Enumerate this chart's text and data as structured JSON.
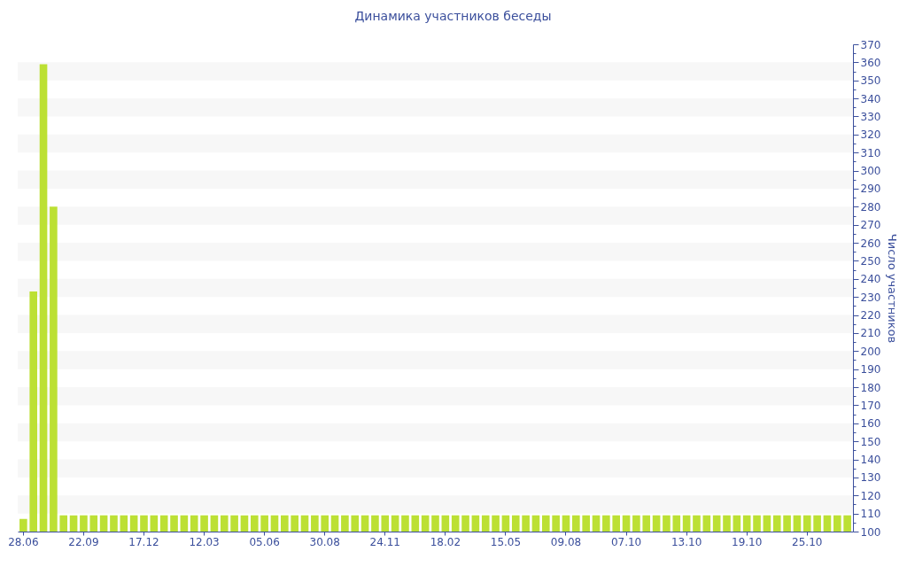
{
  "chart_data": {
    "type": "bar",
    "title": "Динамика участников беседы",
    "ylabel": "Число участников",
    "categories": [
      "28.06",
      null,
      null,
      null,
      null,
      null,
      "22.09",
      null,
      null,
      null,
      null,
      null,
      "17.12",
      null,
      null,
      null,
      null,
      null,
      "12.03",
      null,
      null,
      null,
      null,
      null,
      "05.06",
      null,
      null,
      null,
      null,
      null,
      "30.08",
      null,
      null,
      null,
      null,
      null,
      "24.11",
      null,
      null,
      null,
      null,
      null,
      "18.02",
      null,
      null,
      null,
      null,
      null,
      "15.05",
      null,
      null,
      null,
      null,
      null,
      "09.08",
      null,
      null,
      null,
      null,
      null,
      "07.10",
      null,
      null,
      null,
      null,
      null,
      "13.10",
      null,
      null,
      null,
      null,
      null,
      "19.10",
      null,
      null,
      null,
      null,
      null,
      "25.10",
      null,
      null,
      null,
      null
    ],
    "values": [
      107,
      233,
      359,
      280,
      109,
      109,
      109,
      109,
      109,
      109,
      109,
      109,
      109,
      109,
      109,
      109,
      109,
      109,
      109,
      109,
      109,
      109,
      109,
      109,
      109,
      109,
      109,
      109,
      109,
      109,
      109,
      109,
      109,
      109,
      109,
      109,
      109,
      109,
      109,
      109,
      109,
      109,
      109,
      109,
      109,
      109,
      109,
      109,
      109,
      109,
      109,
      109,
      109,
      109,
      109,
      109,
      109,
      109,
      109,
      109,
      109,
      109,
      109,
      109,
      109,
      109,
      109,
      109,
      109,
      109,
      109,
      109,
      109,
      109,
      109,
      109,
      109,
      109,
      109,
      109,
      109,
      109,
      109
    ],
    "color": "#bce034",
    "ylim": [
      100,
      370
    ],
    "yticks": [
      100,
      {
        "value": 105,
        "label": null
      },
      110,
      {
        "value": 115,
        "label": null
      },
      120,
      {
        "value": 125,
        "label": null
      },
      130,
      {
        "value": 135,
        "label": null
      },
      140,
      {
        "value": 145,
        "label": null
      },
      150,
      {
        "value": 155,
        "label": null
      },
      160,
      {
        "value": 165,
        "label": null
      },
      170,
      {
        "value": 175,
        "label": null
      },
      180,
      {
        "value": 185,
        "label": null
      },
      190,
      {
        "value": 195,
        "label": null
      },
      200,
      {
        "value": 205,
        "label": null
      },
      210,
      {
        "value": 215,
        "label": null
      },
      220,
      {
        "value": 225,
        "label": null
      },
      230,
      {
        "value": 235,
        "label": null
      },
      240,
      {
        "value": 245,
        "label": null
      },
      250,
      {
        "value": 255,
        "label": null
      },
      260,
      {
        "value": 265,
        "label": null
      },
      270,
      {
        "value": 275,
        "label": null
      },
      280,
      {
        "value": 285,
        "label": null
      },
      290,
      {
        "value": 295,
        "label": null
      },
      300,
      {
        "value": 305,
        "label": null
      },
      310,
      {
        "value": 315,
        "label": null
      },
      320,
      {
        "value": 325,
        "label": null
      },
      330,
      {
        "value": 335,
        "label": null
      },
      340,
      {
        "value": 345,
        "label": null
      },
      350,
      {
        "value": 355,
        "label": null
      },
      360,
      {
        "value": 365,
        "label": null
      },
      370
    ],
    "bands": [
      {
        "axis": "y",
        "from": 110,
        "to": 120,
        "color": "#f7f7f7"
      },
      {
        "axis": "y",
        "from": 130,
        "to": 140,
        "color": "#f7f7f7"
      },
      {
        "axis": "y",
        "from": 150,
        "to": 160,
        "color": "#f7f7f7"
      },
      {
        "axis": "y",
        "from": 170,
        "to": 180,
        "color": "#f7f7f7"
      },
      {
        "axis": "y",
        "from": 190,
        "to": 200,
        "color": "#f7f7f7"
      },
      {
        "axis": "y",
        "from": 210,
        "to": 220,
        "color": "#f7f7f7"
      },
      {
        "axis": "y",
        "from": 230,
        "to": 240,
        "color": "#f7f7f7"
      },
      {
        "axis": "y",
        "from": 250,
        "to": 260,
        "color": "#f7f7f7"
      },
      {
        "axis": "y",
        "from": 270,
        "to": 280,
        "color": "#f7f7f7"
      },
      {
        "axis": "y",
        "from": 290,
        "to": 300,
        "color": "#f7f7f7"
      },
      {
        "axis": "y",
        "from": 310,
        "to": 320,
        "color": "#f7f7f7"
      },
      {
        "axis": "y",
        "from": 330,
        "to": 340,
        "color": "#f7f7f7"
      },
      {
        "axis": "y",
        "from": 350,
        "to": 360,
        "color": "#f7f7f7"
      }
    ]
  }
}
